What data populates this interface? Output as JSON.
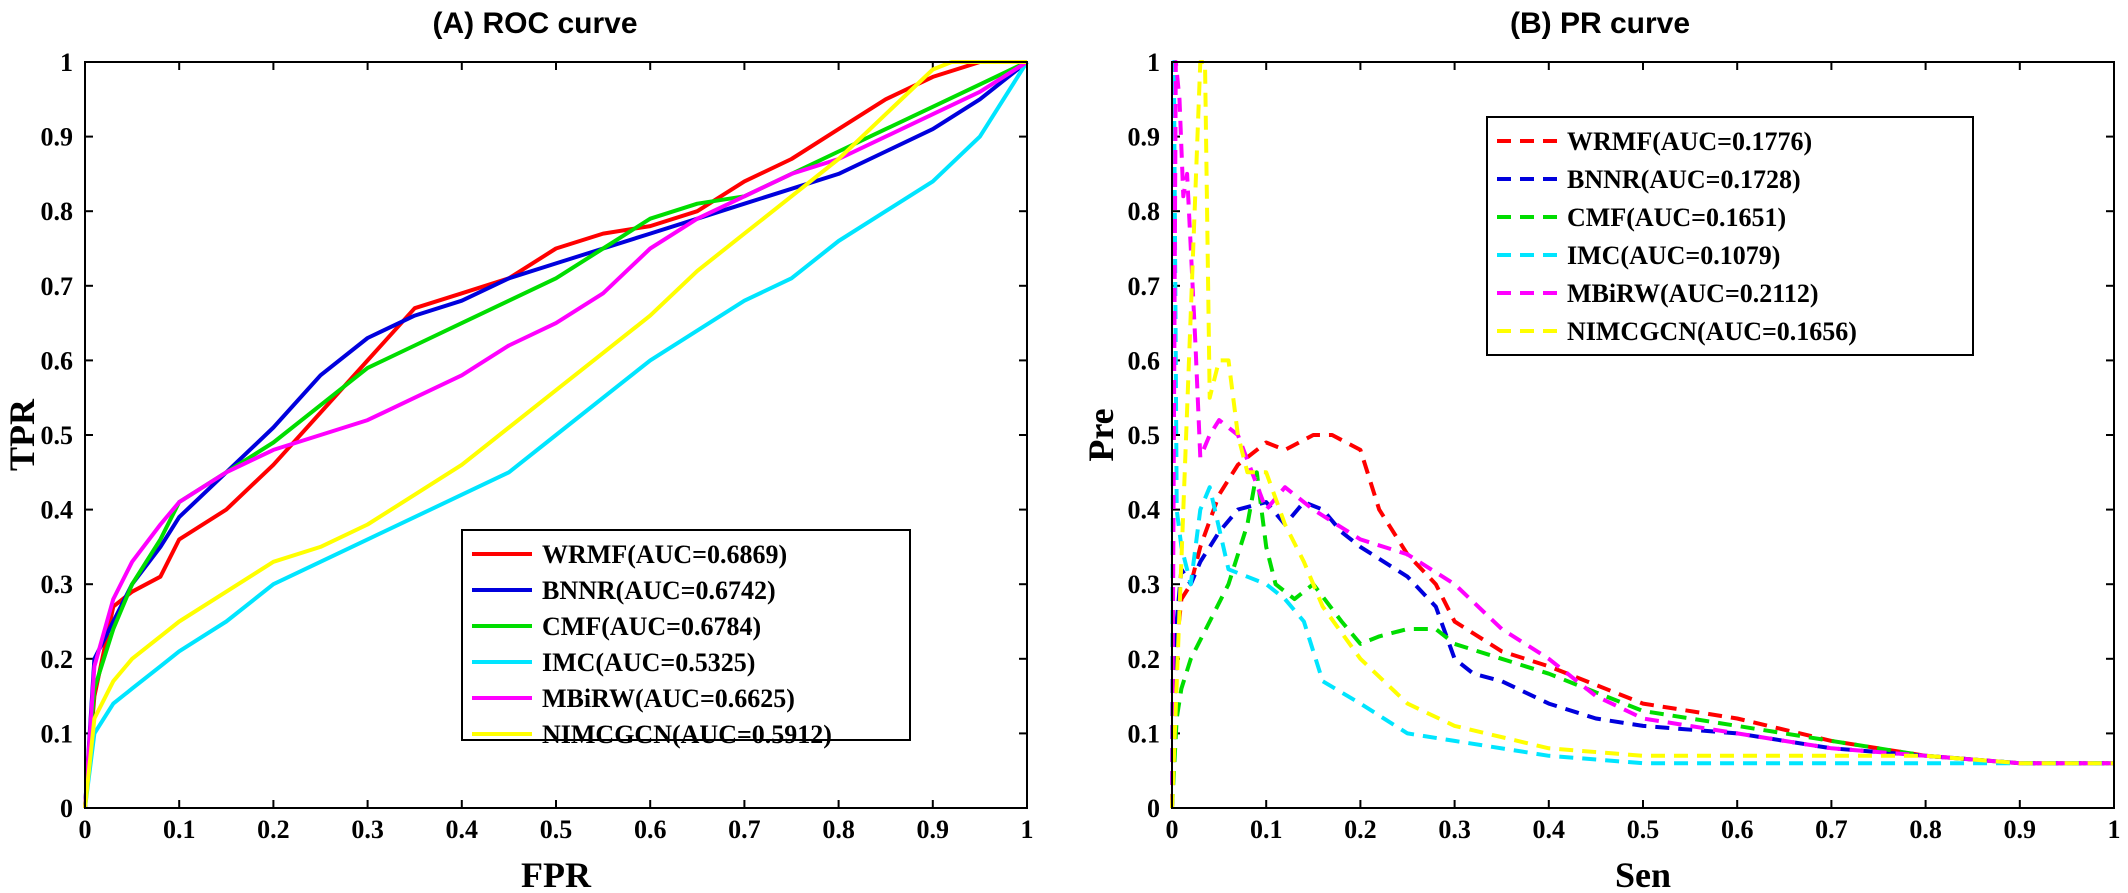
{
  "chart_data": [
    {
      "type": "line",
      "title": "(A)  ROC curve",
      "xlabel": "FPR",
      "ylabel": "TPR",
      "xlim": [
        0,
        1
      ],
      "ylim": [
        0,
        1
      ],
      "xticks": [
        "0",
        "0.1",
        "0.2",
        "0.3",
        "0.4",
        "0.5",
        "0.6",
        "0.7",
        "0.8",
        "0.9",
        "1"
      ],
      "yticks": [
        "0",
        "0.1",
        "0.2",
        "0.3",
        "0.4",
        "0.5",
        "0.6",
        "0.7",
        "0.8",
        "0.9",
        "1"
      ],
      "grid": false,
      "legend": "bottom-right",
      "series": [
        {
          "name": "WRMF(AUC=0.6869)",
          "color": "#ff0000",
          "dash": "solid",
          "x": [
            0,
            0.01,
            0.03,
            0.05,
            0.08,
            0.1,
            0.15,
            0.2,
            0.25,
            0.3,
            0.35,
            0.4,
            0.45,
            0.5,
            0.55,
            0.6,
            0.65,
            0.7,
            0.75,
            0.8,
            0.85,
            0.9,
            0.95,
            1
          ],
          "y": [
            0,
            0.15,
            0.27,
            0.29,
            0.31,
            0.36,
            0.4,
            0.46,
            0.53,
            0.6,
            0.67,
            0.69,
            0.71,
            0.75,
            0.77,
            0.78,
            0.8,
            0.84,
            0.87,
            0.91,
            0.95,
            0.98,
            1.0,
            1.0
          ]
        },
        {
          "name": "BNNR(AUC=0.6742)",
          "color": "#0000dd",
          "dash": "solid",
          "x": [
            0,
            0.01,
            0.03,
            0.05,
            0.08,
            0.1,
            0.15,
            0.2,
            0.25,
            0.3,
            0.35,
            0.4,
            0.45,
            0.5,
            0.55,
            0.6,
            0.65,
            0.7,
            0.75,
            0.8,
            0.85,
            0.9,
            0.95,
            1
          ],
          "y": [
            0,
            0.2,
            0.25,
            0.3,
            0.35,
            0.39,
            0.45,
            0.51,
            0.58,
            0.63,
            0.66,
            0.68,
            0.71,
            0.73,
            0.75,
            0.77,
            0.79,
            0.81,
            0.83,
            0.85,
            0.88,
            0.91,
            0.95,
            1.0
          ]
        },
        {
          "name": "CMF(AUC=0.6784)",
          "color": "#00dd00",
          "dash": "solid",
          "x": [
            0,
            0.01,
            0.03,
            0.05,
            0.08,
            0.1,
            0.15,
            0.2,
            0.25,
            0.3,
            0.35,
            0.4,
            0.45,
            0.5,
            0.55,
            0.6,
            0.65,
            0.7,
            0.75,
            0.8,
            0.85,
            0.9,
            0.95,
            1
          ],
          "y": [
            0,
            0.16,
            0.24,
            0.3,
            0.36,
            0.41,
            0.45,
            0.49,
            0.54,
            0.59,
            0.62,
            0.65,
            0.68,
            0.71,
            0.75,
            0.79,
            0.81,
            0.82,
            0.85,
            0.88,
            0.91,
            0.94,
            0.97,
            1.0
          ]
        },
        {
          "name": "IMC(AUC=0.5325)",
          "color": "#00e5ff",
          "dash": "solid",
          "x": [
            0,
            0.01,
            0.03,
            0.05,
            0.08,
            0.1,
            0.15,
            0.2,
            0.25,
            0.3,
            0.35,
            0.4,
            0.45,
            0.5,
            0.55,
            0.6,
            0.65,
            0.7,
            0.75,
            0.8,
            0.85,
            0.9,
            0.95,
            1
          ],
          "y": [
            0,
            0.1,
            0.14,
            0.16,
            0.19,
            0.21,
            0.25,
            0.3,
            0.33,
            0.36,
            0.39,
            0.42,
            0.45,
            0.5,
            0.55,
            0.6,
            0.64,
            0.68,
            0.71,
            0.76,
            0.8,
            0.84,
            0.9,
            1.0
          ]
        },
        {
          "name": "MBiRW(AUC=0.6625)",
          "color": "#ff00ff",
          "dash": "solid",
          "x": [
            0,
            0.01,
            0.03,
            0.05,
            0.08,
            0.1,
            0.15,
            0.2,
            0.25,
            0.3,
            0.35,
            0.4,
            0.45,
            0.5,
            0.55,
            0.6,
            0.65,
            0.7,
            0.75,
            0.8,
            0.85,
            0.9,
            0.95,
            1
          ],
          "y": [
            0,
            0.19,
            0.28,
            0.33,
            0.38,
            0.41,
            0.45,
            0.48,
            0.5,
            0.52,
            0.55,
            0.58,
            0.62,
            0.65,
            0.69,
            0.75,
            0.79,
            0.82,
            0.85,
            0.87,
            0.9,
            0.93,
            0.96,
            1.0
          ]
        },
        {
          "name": "NIMCGCN(AUC=0.5912)",
          "color": "#ffff00",
          "dash": "solid",
          "x": [
            0,
            0.01,
            0.03,
            0.05,
            0.08,
            0.1,
            0.15,
            0.2,
            0.25,
            0.3,
            0.35,
            0.4,
            0.45,
            0.5,
            0.55,
            0.6,
            0.65,
            0.7,
            0.75,
            0.8,
            0.85,
            0.9,
            0.92,
            0.95,
            1
          ],
          "y": [
            0,
            0.12,
            0.17,
            0.2,
            0.23,
            0.25,
            0.29,
            0.33,
            0.35,
            0.38,
            0.42,
            0.46,
            0.51,
            0.56,
            0.61,
            0.66,
            0.72,
            0.77,
            0.82,
            0.87,
            0.93,
            0.99,
            1.0,
            1.0,
            1.0
          ]
        }
      ]
    },
    {
      "type": "line",
      "title": "(B)  PR curve",
      "xlabel": "Sen",
      "ylabel": "Pre",
      "xlim": [
        0,
        1
      ],
      "ylim": [
        0,
        1
      ],
      "xticks": [
        "0",
        "0.1",
        "0.2",
        "0.3",
        "0.4",
        "0.5",
        "0.6",
        "0.7",
        "0.8",
        "0.9",
        "1"
      ],
      "yticks": [
        "0",
        "0.1",
        "0.2",
        "0.3",
        "0.4",
        "0.5",
        "0.6",
        "0.7",
        "0.8",
        "0.9",
        "1"
      ],
      "grid": false,
      "legend": "top-right",
      "series": [
        {
          "name": "WRMF(AUC=0.1776)",
          "color": "#ff0000",
          "dash": "dashed",
          "x": [
            0,
            0.005,
            0.01,
            0.02,
            0.03,
            0.05,
            0.07,
            0.1,
            0.12,
            0.15,
            0.17,
            0.2,
            0.22,
            0.25,
            0.28,
            0.3,
            0.35,
            0.4,
            0.5,
            0.6,
            0.7,
            0.8,
            0.9,
            1.0
          ],
          "y": [
            0,
            0.22,
            0.28,
            0.3,
            0.35,
            0.42,
            0.46,
            0.49,
            0.48,
            0.5,
            0.5,
            0.48,
            0.4,
            0.34,
            0.3,
            0.25,
            0.21,
            0.19,
            0.14,
            0.12,
            0.09,
            0.07,
            0.06,
            0.06
          ]
        },
        {
          "name": "BNNR(AUC=0.1728)",
          "color": "#0000dd",
          "dash": "dashed",
          "x": [
            0,
            0.005,
            0.01,
            0.02,
            0.03,
            0.05,
            0.07,
            0.1,
            0.12,
            0.14,
            0.16,
            0.18,
            0.2,
            0.25,
            0.28,
            0.3,
            0.32,
            0.35,
            0.4,
            0.45,
            0.5,
            0.6,
            0.7,
            0.8,
            0.9,
            1.0
          ],
          "y": [
            0,
            0.25,
            0.32,
            0.3,
            0.33,
            0.37,
            0.4,
            0.41,
            0.38,
            0.41,
            0.4,
            0.37,
            0.35,
            0.31,
            0.27,
            0.2,
            0.18,
            0.17,
            0.14,
            0.12,
            0.11,
            0.1,
            0.08,
            0.07,
            0.06,
            0.06
          ]
        },
        {
          "name": "CMF(AUC=0.1651)",
          "color": "#00dd00",
          "dash": "dashed",
          "x": [
            0,
            0.005,
            0.01,
            0.02,
            0.04,
            0.06,
            0.08,
            0.09,
            0.1,
            0.11,
            0.13,
            0.15,
            0.18,
            0.2,
            0.22,
            0.25,
            0.28,
            0.3,
            0.35,
            0.4,
            0.5,
            0.6,
            0.7,
            0.8,
            0.9,
            1.0
          ],
          "y": [
            0,
            0.12,
            0.16,
            0.2,
            0.25,
            0.3,
            0.38,
            0.45,
            0.35,
            0.3,
            0.28,
            0.3,
            0.25,
            0.22,
            0.23,
            0.24,
            0.24,
            0.22,
            0.2,
            0.18,
            0.13,
            0.11,
            0.09,
            0.07,
            0.06,
            0.06
          ]
        },
        {
          "name": "IMC(AUC=0.1079)",
          "color": "#00e5ff",
          "dash": "dashed",
          "x": [
            0,
            0.002,
            0.005,
            0.01,
            0.02,
            0.03,
            0.04,
            0.06,
            0.08,
            0.1,
            0.12,
            0.14,
            0.16,
            0.2,
            0.25,
            0.3,
            0.4,
            0.5,
            0.6,
            0.7,
            0.8,
            0.9,
            1.0
          ],
          "y": [
            0,
            1.0,
            0.4,
            0.35,
            0.3,
            0.4,
            0.43,
            0.32,
            0.31,
            0.3,
            0.28,
            0.25,
            0.17,
            0.14,
            0.1,
            0.09,
            0.07,
            0.06,
            0.06,
            0.06,
            0.06,
            0.06,
            0.06
          ]
        },
        {
          "name": "MBiRW(AUC=0.2112)",
          "color": "#ff00ff",
          "dash": "dashed",
          "x": [
            0,
            0.004,
            0.008,
            0.012,
            0.016,
            0.02,
            0.025,
            0.03,
            0.04,
            0.05,
            0.07,
            0.1,
            0.12,
            0.15,
            0.2,
            0.25,
            0.3,
            0.35,
            0.4,
            0.45,
            0.5,
            0.6,
            0.7,
            0.8,
            0.9,
            1.0
          ],
          "y": [
            0,
            1.0,
            0.95,
            0.82,
            0.85,
            0.75,
            0.62,
            0.47,
            0.5,
            0.52,
            0.5,
            0.4,
            0.43,
            0.4,
            0.36,
            0.34,
            0.3,
            0.24,
            0.2,
            0.15,
            0.12,
            0.1,
            0.08,
            0.07,
            0.06,
            0.06
          ]
        },
        {
          "name": "NIMCGCN(AUC=0.1656)",
          "color": "#ffff00",
          "dash": "dashed",
          "x": [
            0,
            0.03,
            0.035,
            0.04,
            0.05,
            0.06,
            0.07,
            0.08,
            0.1,
            0.12,
            0.14,
            0.16,
            0.2,
            0.25,
            0.3,
            0.4,
            0.5,
            0.6,
            0.7,
            0.8,
            0.9,
            1.0
          ],
          "y": [
            0,
            1.0,
            1.0,
            0.55,
            0.6,
            0.6,
            0.5,
            0.45,
            0.45,
            0.38,
            0.33,
            0.27,
            0.2,
            0.14,
            0.11,
            0.08,
            0.07,
            0.07,
            0.07,
            0.07,
            0.06,
            0.06
          ]
        }
      ]
    }
  ]
}
